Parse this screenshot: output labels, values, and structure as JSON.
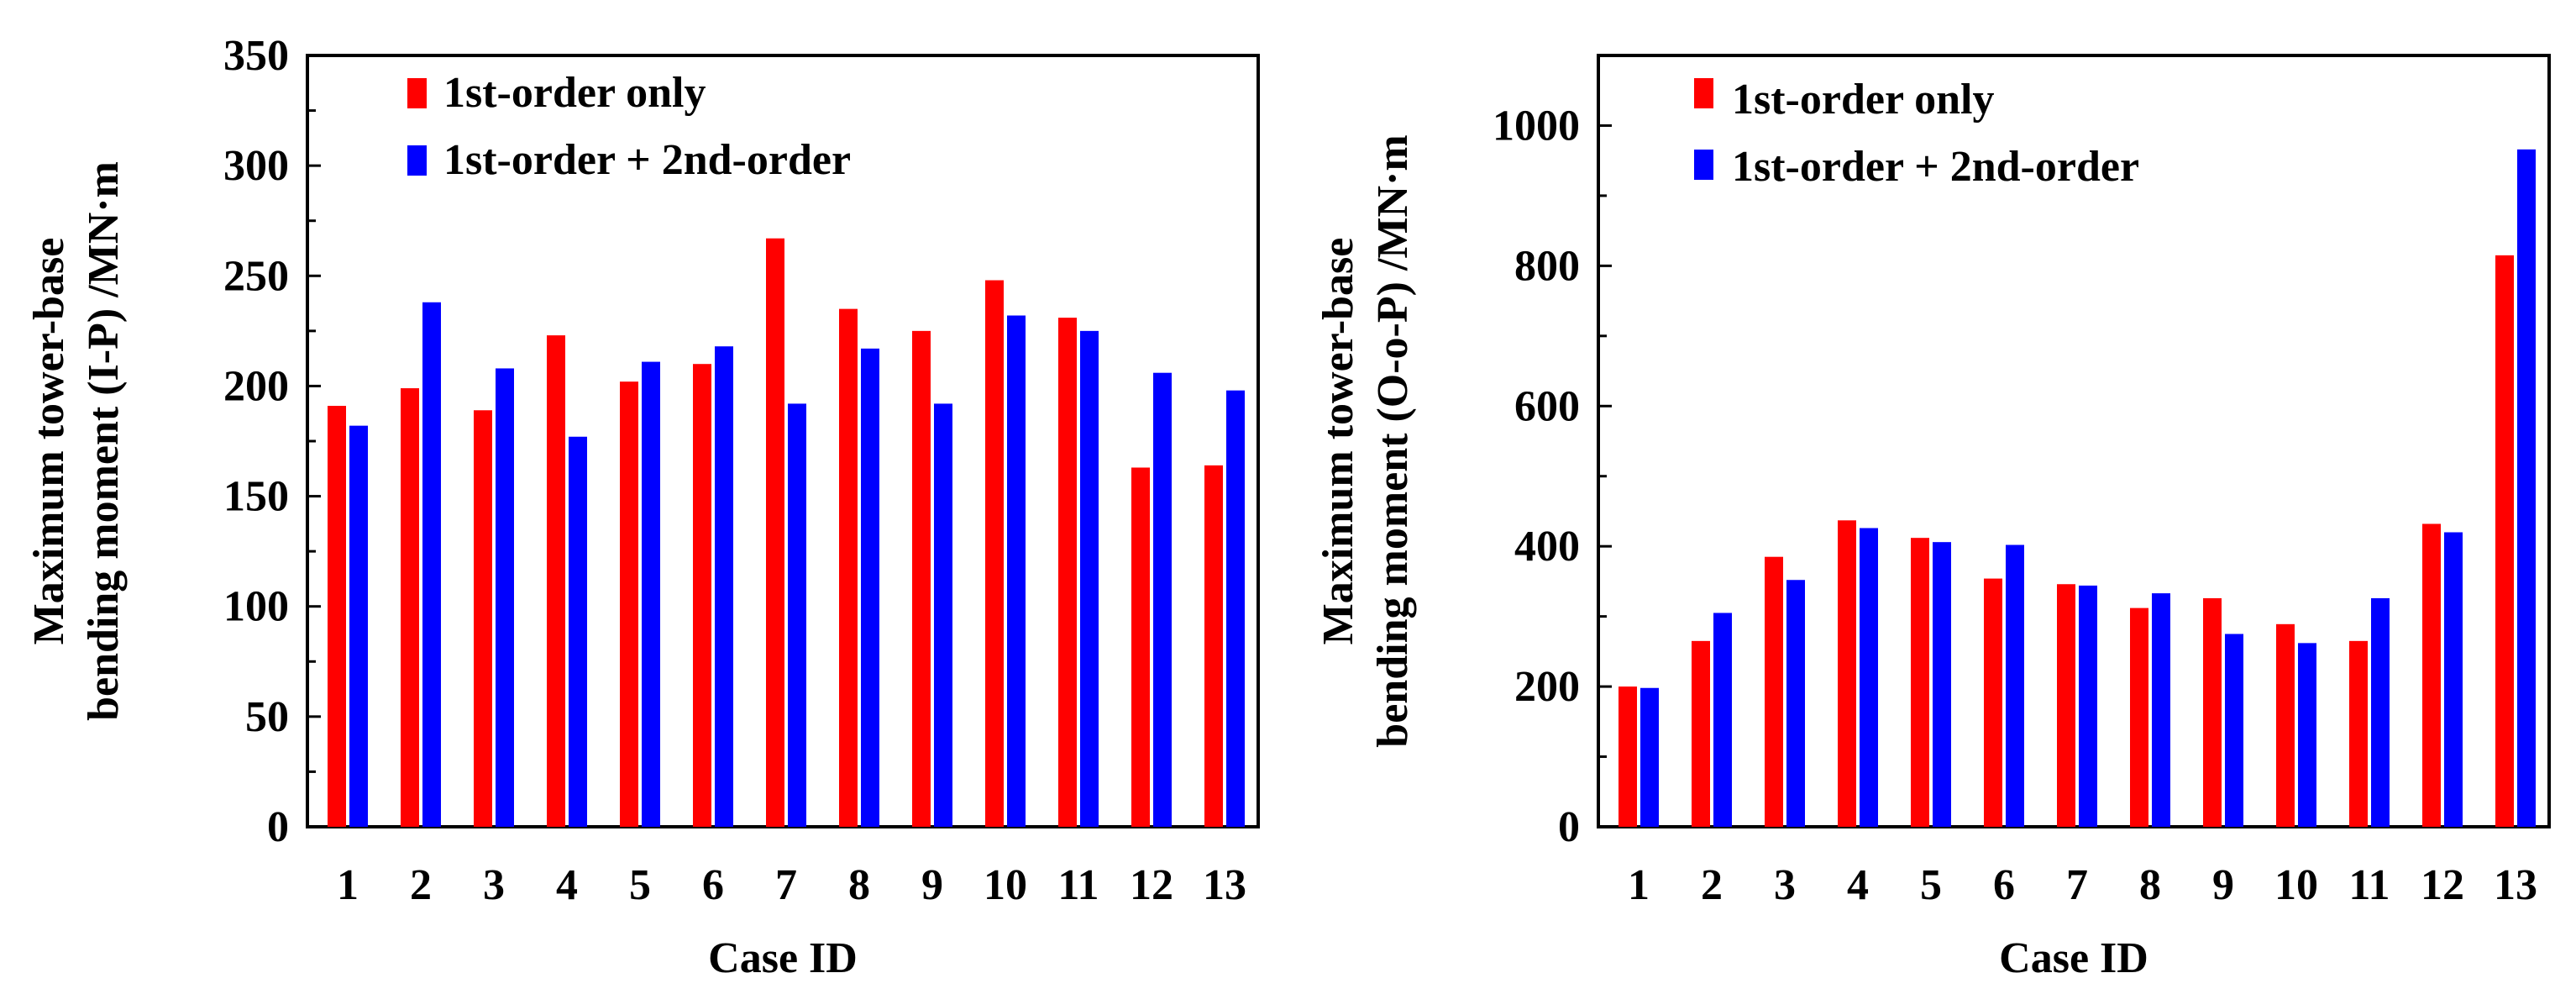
{
  "colors": {
    "first_order": "#ff0000",
    "first_plus_second": "#0000ff",
    "axes": "#000000"
  },
  "chart_data": [
    {
      "type": "bar",
      "categories": [
        "1",
        "2",
        "3",
        "4",
        "5",
        "6",
        "7",
        "8",
        "9",
        "10",
        "11",
        "12",
        "13"
      ],
      "series": [
        {
          "name": "1st-order only",
          "color": "#ff0000",
          "values": [
            191,
            199,
            189,
            223,
            202,
            210,
            267,
            235,
            225,
            248,
            231,
            163,
            164
          ]
        },
        {
          "name": "1st-order + 2nd-order",
          "color": "#0000ff",
          "values": [
            182,
            238,
            208,
            177,
            211,
            218,
            192,
            217,
            192,
            232,
            225,
            206,
            198
          ]
        }
      ],
      "xlabel": "Case ID",
      "ylabel_lines": [
        "Maximum tower-base",
        "bending moment (I-P) /MN·m"
      ],
      "ylim": [
        0,
        350
      ],
      "yticks": [
        0,
        50,
        100,
        150,
        200,
        250,
        300,
        350
      ],
      "legend": "top-left",
      "grid": false
    },
    {
      "type": "bar",
      "categories": [
        "1",
        "2",
        "3",
        "4",
        "5",
        "6",
        "7",
        "8",
        "9",
        "10",
        "11",
        "12",
        "13"
      ],
      "series": [
        {
          "name": "1st-order only",
          "color": "#ff0000",
          "values": [
            200,
            265,
            385,
            437,
            412,
            354,
            346,
            312,
            326,
            289,
            265,
            432,
            815
          ]
        },
        {
          "name": "1st-order + 2nd-order",
          "color": "#0000ff",
          "values": [
            198,
            305,
            352,
            426,
            406,
            402,
            344,
            333,
            275,
            262,
            326,
            420,
            966
          ]
        }
      ],
      "xlabel": "Case ID",
      "ylabel_lines": [
        "Maximum tower-base",
        "bending moment (O-o-P) /MN·m"
      ],
      "ylim": [
        0,
        1100
      ],
      "yticks": [
        0,
        200,
        400,
        600,
        800,
        1000
      ],
      "legend": "top-left",
      "grid": false
    }
  ]
}
